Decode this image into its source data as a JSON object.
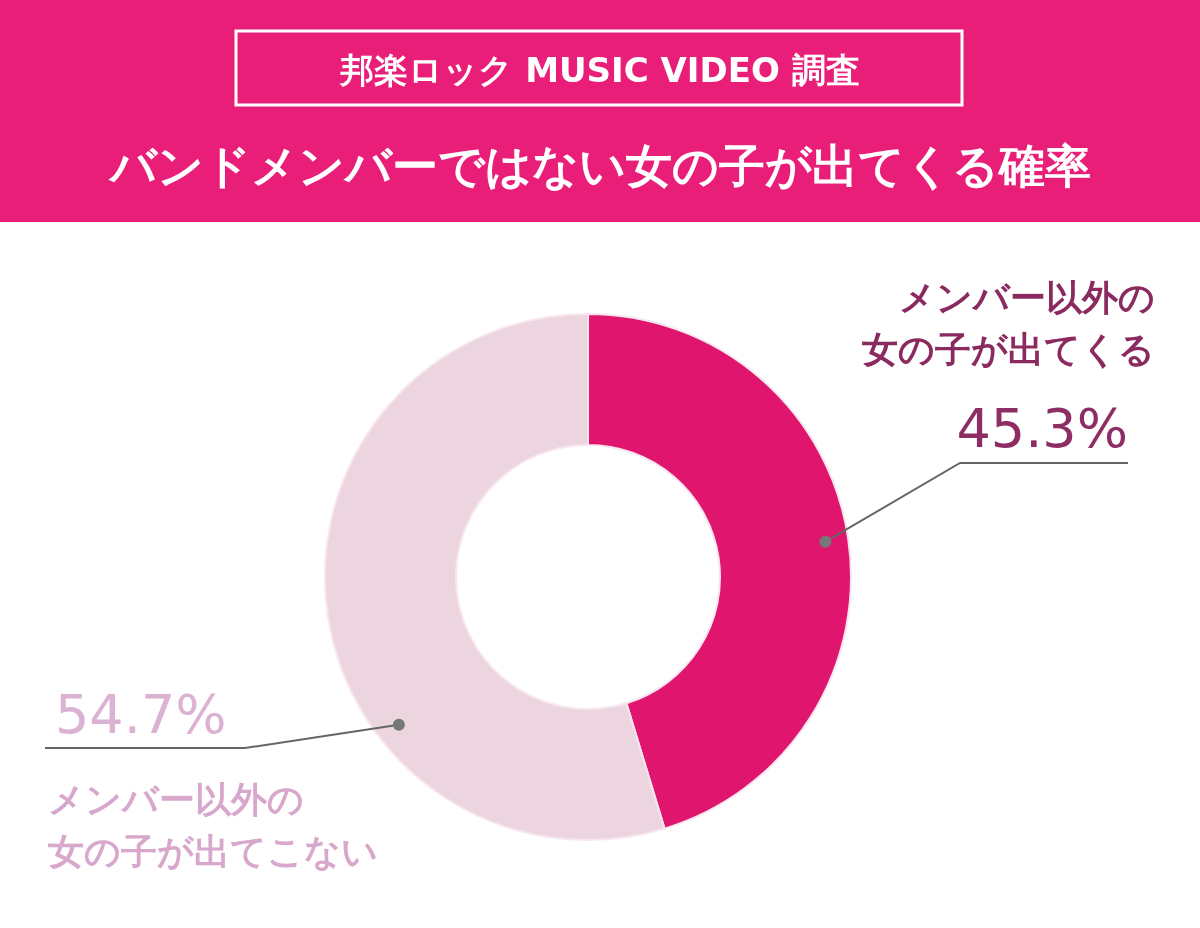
{
  "chart_data": {
    "type": "donut",
    "title": "邦楽ロック MUSIC VIDEO 調査",
    "subtitle": "バンドメンバーではない女の子が出てくる確率",
    "categories": [
      "メンバー以外の女の子が出てくる",
      "メンバー以外の女の子が出てこない"
    ],
    "values": [
      45.3,
      54.7
    ],
    "value_labels": [
      "45.3%",
      "54.7%"
    ],
    "colors": [
      "#e0156e",
      "#ecd5df"
    ]
  }
}
